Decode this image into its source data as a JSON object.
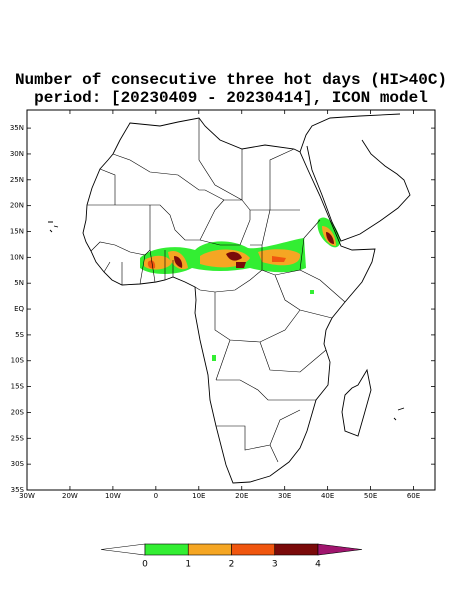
{
  "map": {
    "title": "Number of consecutive three hot days (HI>40C)",
    "subtitle": "period: [20230409 - 20230414], ICON model",
    "xlim": [
      -30,
      65
    ],
    "ylim": [
      -35,
      38.5
    ],
    "xticks": [
      {
        "value": -30,
        "label": "30W"
      },
      {
        "value": -20,
        "label": "20W"
      },
      {
        "value": -10,
        "label": "10W"
      },
      0,
      {
        "value": 10,
        "label": "10E"
      },
      {
        "value": 20,
        "label": "20E"
      },
      {
        "value": 30,
        "label": "30E"
      },
      {
        "value": 40,
        "label": "40E"
      },
      {
        "value": 50,
        "label": "50E"
      },
      {
        "value": 60,
        "label": "60E"
      }
    ],
    "yticks": [
      {
        "value": 35,
        "label": "35N"
      },
      {
        "value": 30,
        "label": "30N"
      },
      {
        "value": 25,
        "label": "25N"
      },
      {
        "value": 20,
        "label": "20N"
      },
      {
        "value": 15,
        "label": "15N"
      },
      {
        "value": 10,
        "label": "10N"
      },
      {
        "value": 5,
        "label": "5N"
      },
      {
        "value": 0,
        "label": "EQ"
      },
      {
        "value": -5,
        "label": "5S"
      },
      {
        "value": -10,
        "label": "10S"
      },
      {
        "value": -15,
        "label": "15S"
      },
      {
        "value": -20,
        "label": "20S"
      },
      {
        "value": -25,
        "label": "25S"
      },
      {
        "value": -30,
        "label": "30S"
      },
      {
        "value": -35,
        "label": "35S"
      }
    ],
    "colorbar": {
      "levels": [
        0,
        1,
        2,
        3,
        4
      ],
      "colors": [
        "#ffffff",
        "#33ee33",
        "#f5a623",
        "#f0560f",
        "#7a0a0a",
        "#a0156e"
      ]
    }
  }
}
